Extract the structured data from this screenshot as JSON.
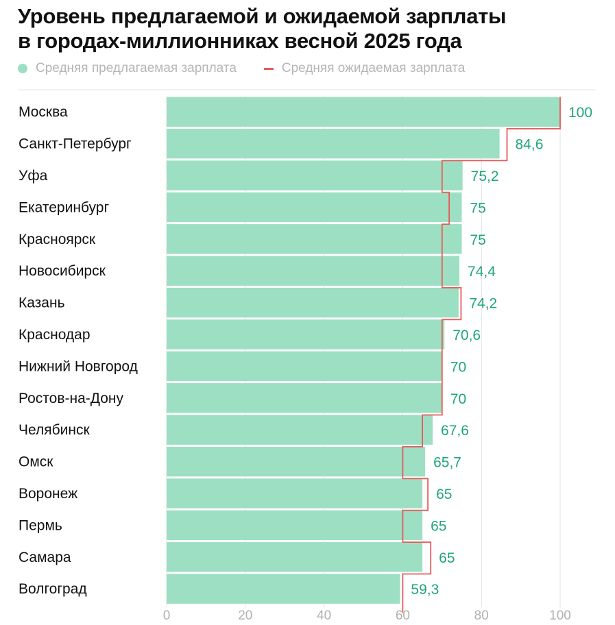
{
  "title_line1": "Уровень предлагаемой и ожидаемой зарплаты",
  "title_line2": "в городах-миллионниках весной 2025 года",
  "legend": {
    "offered_label": "Средняя предлагаемая зарплата",
    "expected_label": "Средняя ожидаемая зарплата"
  },
  "colors": {
    "bar": "#9ddfc3",
    "expected_line": "#e85a5a",
    "value_text": "#1fa775",
    "grid": "#e0e0e0",
    "axis_text": "#b0b0b0",
    "label_text": "#111111"
  },
  "chart_data": {
    "type": "bar",
    "orientation": "horizontal",
    "title": "Уровень предлагаемой и ожидаемой зарплаты в городах-миллионниках весной 2025 года",
    "categories": [
      "Москва",
      "Санкт-Петербург",
      "Уфа",
      "Екатеринбург",
      "Красноярск",
      "Новосибирск",
      "Казань",
      "Краснодар",
      "Нижний Новгород",
      "Ростов-на-Дону",
      "Челябинск",
      "Омск",
      "Воронеж",
      "Пермь",
      "Самара",
      "Волгоград"
    ],
    "series": [
      {
        "name": "Средняя предлагаемая зарплата",
        "values": [
          100,
          84.6,
          75.2,
          75,
          75,
          74.4,
          74.2,
          70.6,
          70,
          70,
          67.6,
          65.7,
          65,
          65,
          65,
          59.3
        ],
        "labels": [
          "100",
          "84,6",
          "75,2",
          "75",
          "75",
          "74,4",
          "74,2",
          "70,6",
          "70",
          "70",
          "67,6",
          "65,7",
          "65",
          "65",
          "65",
          "59,3"
        ]
      },
      {
        "name": "Средняя ожидаемая зарплата",
        "values": [
          100,
          86.5,
          70,
          71.8,
          70,
          70,
          74.8,
          70,
          70,
          70,
          65,
          60,
          66.4,
          60,
          67.1,
          60
        ]
      }
    ],
    "xlim": [
      0,
      100
    ],
    "xticks": [
      0,
      20,
      40,
      60,
      80,
      100
    ],
    "grid": true,
    "legend_position": "top-left"
  }
}
